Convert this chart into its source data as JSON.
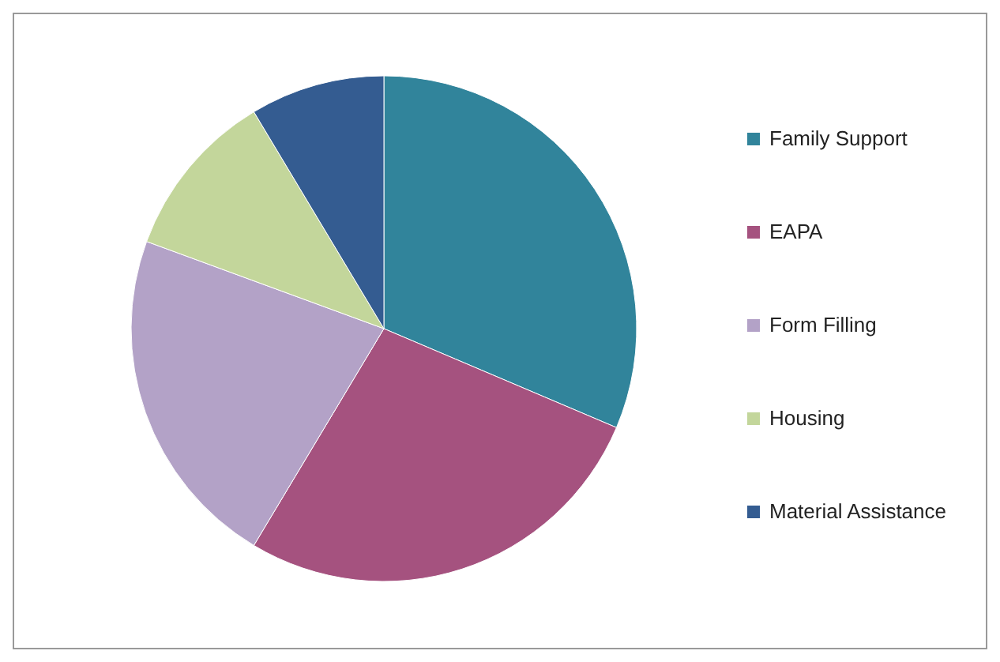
{
  "chart_data": {
    "type": "pie",
    "categories": [
      "Family Support",
      "EAPA",
      "Form Filling",
      "Housing",
      "Material Assistance"
    ],
    "values": [
      31.4,
      27.2,
      22,
      10.8,
      8.6
    ],
    "colors": [
      "#31849b",
      "#a5527f",
      "#b3a2c7",
      "#c3d69b",
      "#345c91"
    ],
    "legend": "right"
  }
}
